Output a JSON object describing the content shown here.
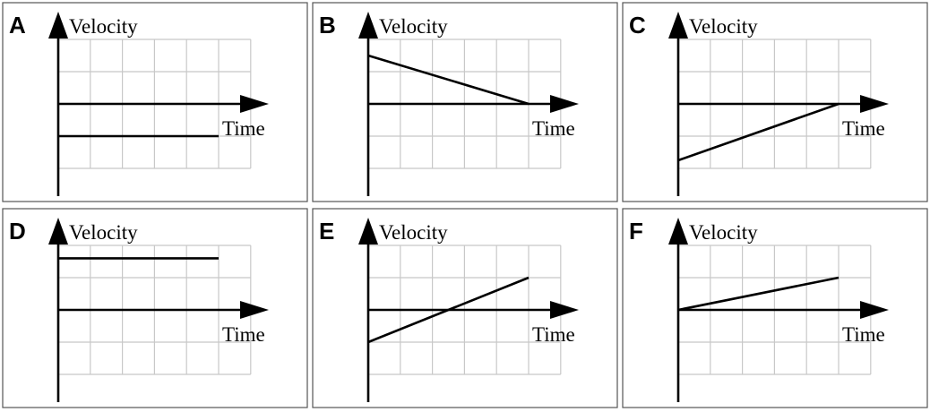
{
  "figure": {
    "y_axis_label": "Velocity",
    "x_axis_label": "Time",
    "grid": true,
    "grid_units": {
      "x_max": 6,
      "y_min": -2,
      "y_max": 2
    },
    "colors": {
      "line": "#000000",
      "grid": "#c8c8c8",
      "frame": "#555555"
    }
  },
  "panels": [
    {
      "letter": "A",
      "line": {
        "from": [
          0,
          -1
        ],
        "to": [
          5,
          -1
        ]
      }
    },
    {
      "letter": "B",
      "line": {
        "from": [
          0,
          1.5
        ],
        "to": [
          5,
          0
        ]
      }
    },
    {
      "letter": "C",
      "line": {
        "from": [
          0,
          -1.75
        ],
        "to": [
          5,
          0
        ]
      }
    },
    {
      "letter": "D",
      "line": {
        "from": [
          0,
          1.6
        ],
        "to": [
          5,
          1.6
        ]
      }
    },
    {
      "letter": "E",
      "line": {
        "from": [
          0,
          -1
        ],
        "to": [
          5,
          1
        ]
      }
    },
    {
      "letter": "F",
      "line": {
        "from": [
          0,
          0
        ],
        "to": [
          5,
          1
        ]
      }
    }
  ]
}
